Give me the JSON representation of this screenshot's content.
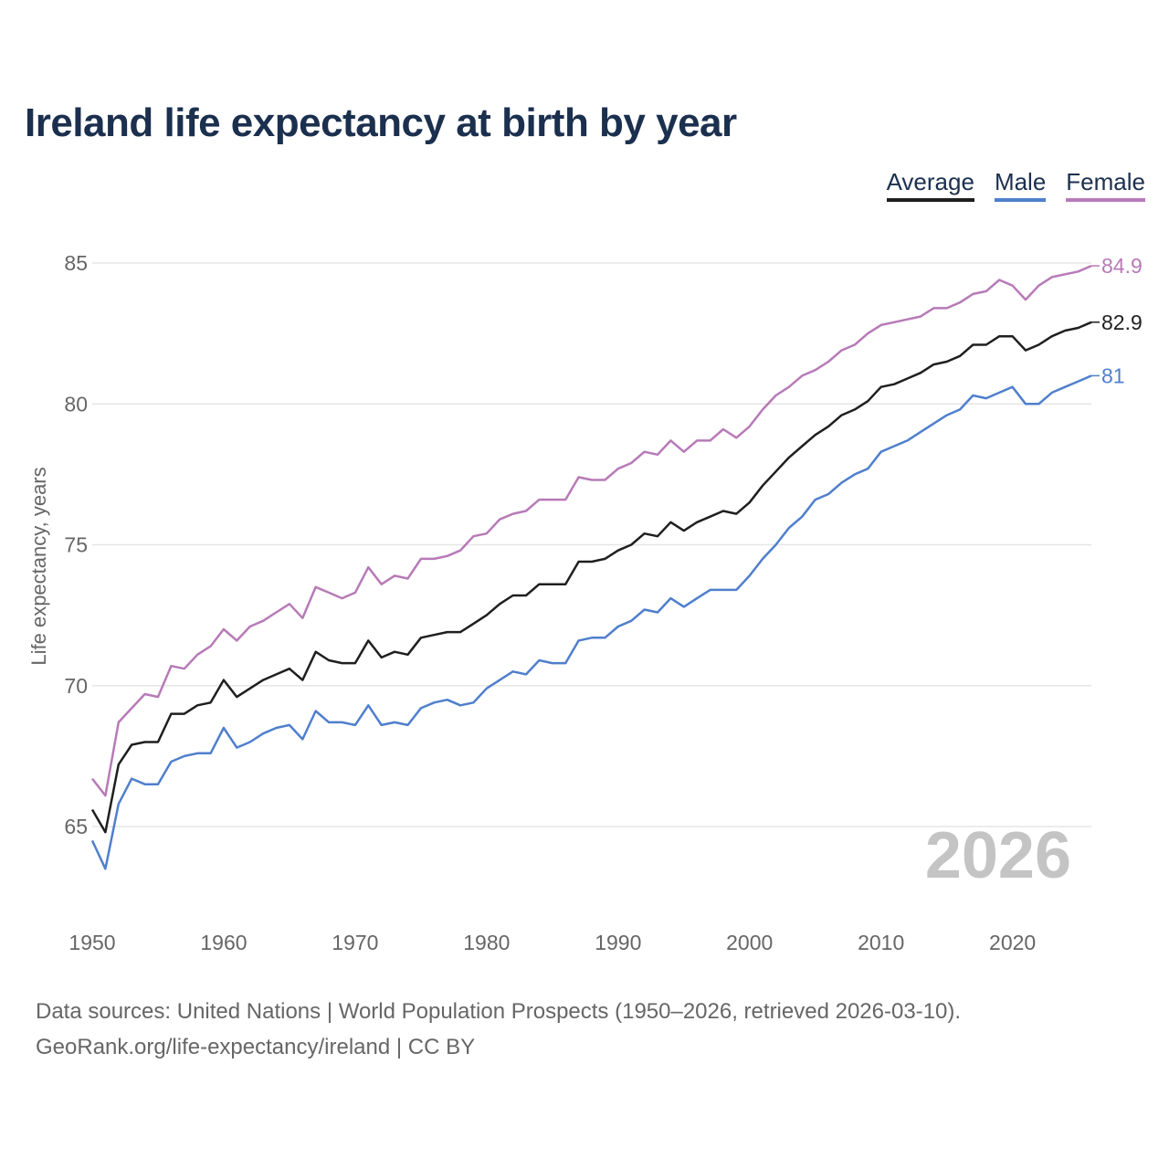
{
  "title": "Ireland life expectancy at birth by year",
  "legend": [
    {
      "label": "Average",
      "color": "#1f1f1f"
    },
    {
      "label": "Male",
      "color": "#4f7fcc"
    },
    {
      "label": "Female",
      "color": "#b77ab7"
    }
  ],
  "watermark_year": "2026",
  "source_line1": "Data sources: United Nations | World Population Prospects (1950–2026, retrieved 2026-03-10).",
  "source_line2": "GeoRank.org/life-expectancy/ireland | CC BY",
  "chart_data": {
    "type": "line",
    "title": "Ireland life expectancy at birth by year",
    "xlabel": "",
    "ylabel": "Life expectancy, years",
    "xlim": [
      1950,
      2026
    ],
    "ylim": [
      62.3,
      86
    ],
    "grid": true,
    "legend_position": "top-right",
    "x_ticks": [
      1950,
      1960,
      1970,
      1980,
      1990,
      2000,
      2010,
      2020
    ],
    "y_ticks": [
      65,
      70,
      75,
      80,
      85
    ],
    "x_start": 1950,
    "series": [
      {
        "name": "Average",
        "color": "#1f1f1f",
        "end_label": "82.9",
        "values": [
          65.6,
          64.8,
          67.2,
          67.9,
          68.0,
          68.0,
          69.0,
          69.0,
          69.3,
          69.4,
          70.2,
          69.6,
          69.9,
          70.2,
          70.4,
          70.6,
          70.2,
          71.2,
          70.9,
          70.8,
          70.8,
          71.6,
          71.0,
          71.2,
          71.1,
          71.7,
          71.8,
          71.9,
          71.9,
          72.2,
          72.5,
          72.9,
          73.2,
          73.2,
          73.6,
          73.6,
          73.6,
          74.4,
          74.4,
          74.5,
          74.8,
          75.0,
          75.4,
          75.3,
          75.8,
          75.5,
          75.8,
          76.0,
          76.2,
          76.1,
          76.5,
          77.1,
          77.6,
          78.1,
          78.5,
          78.9,
          79.2,
          79.6,
          79.8,
          80.1,
          80.6,
          80.7,
          80.9,
          81.1,
          81.4,
          81.5,
          81.7,
          82.1,
          82.1,
          82.4,
          82.4,
          81.9,
          82.1,
          82.4,
          82.6,
          82.7,
          82.9
        ]
      },
      {
        "name": "Male",
        "color": "#4f7fcc",
        "end_label": "81",
        "values": [
          64.5,
          63.5,
          65.8,
          66.7,
          66.5,
          66.5,
          67.3,
          67.5,
          67.6,
          67.6,
          68.5,
          67.8,
          68.0,
          68.3,
          68.5,
          68.6,
          68.1,
          69.1,
          68.7,
          68.7,
          68.6,
          69.3,
          68.6,
          68.7,
          68.6,
          69.2,
          69.4,
          69.5,
          69.3,
          69.4,
          69.9,
          70.2,
          70.5,
          70.4,
          70.9,
          70.8,
          70.8,
          71.6,
          71.7,
          71.7,
          72.1,
          72.3,
          72.7,
          72.6,
          73.1,
          72.8,
          73.1,
          73.4,
          73.4,
          73.4,
          73.9,
          74.5,
          75.0,
          75.6,
          76.0,
          76.6,
          76.8,
          77.2,
          77.5,
          77.7,
          78.3,
          78.5,
          78.7,
          79.0,
          79.3,
          79.6,
          79.8,
          80.3,
          80.2,
          80.4,
          80.6,
          80.0,
          80.0,
          80.4,
          80.6,
          80.8,
          81.0
        ]
      },
      {
        "name": "Female",
        "color": "#b77ab7",
        "end_label": "84.9",
        "values": [
          66.7,
          66.1,
          68.7,
          69.2,
          69.7,
          69.6,
          70.7,
          70.6,
          71.1,
          71.4,
          72.0,
          71.6,
          72.1,
          72.3,
          72.6,
          72.9,
          72.4,
          73.5,
          73.3,
          73.1,
          73.3,
          74.2,
          73.6,
          73.9,
          73.8,
          74.5,
          74.5,
          74.6,
          74.8,
          75.3,
          75.4,
          75.9,
          76.1,
          76.2,
          76.6,
          76.6,
          76.6,
          77.4,
          77.3,
          77.3,
          77.7,
          77.9,
          78.3,
          78.2,
          78.7,
          78.3,
          78.7,
          78.7,
          79.1,
          78.8,
          79.2,
          79.8,
          80.3,
          80.6,
          81.0,
          81.2,
          81.5,
          81.9,
          82.1,
          82.5,
          82.8,
          82.9,
          83.0,
          83.1,
          83.4,
          83.4,
          83.6,
          83.9,
          84.0,
          84.4,
          84.2,
          83.7,
          84.2,
          84.5,
          84.6,
          84.7,
          84.9
        ]
      }
    ]
  }
}
